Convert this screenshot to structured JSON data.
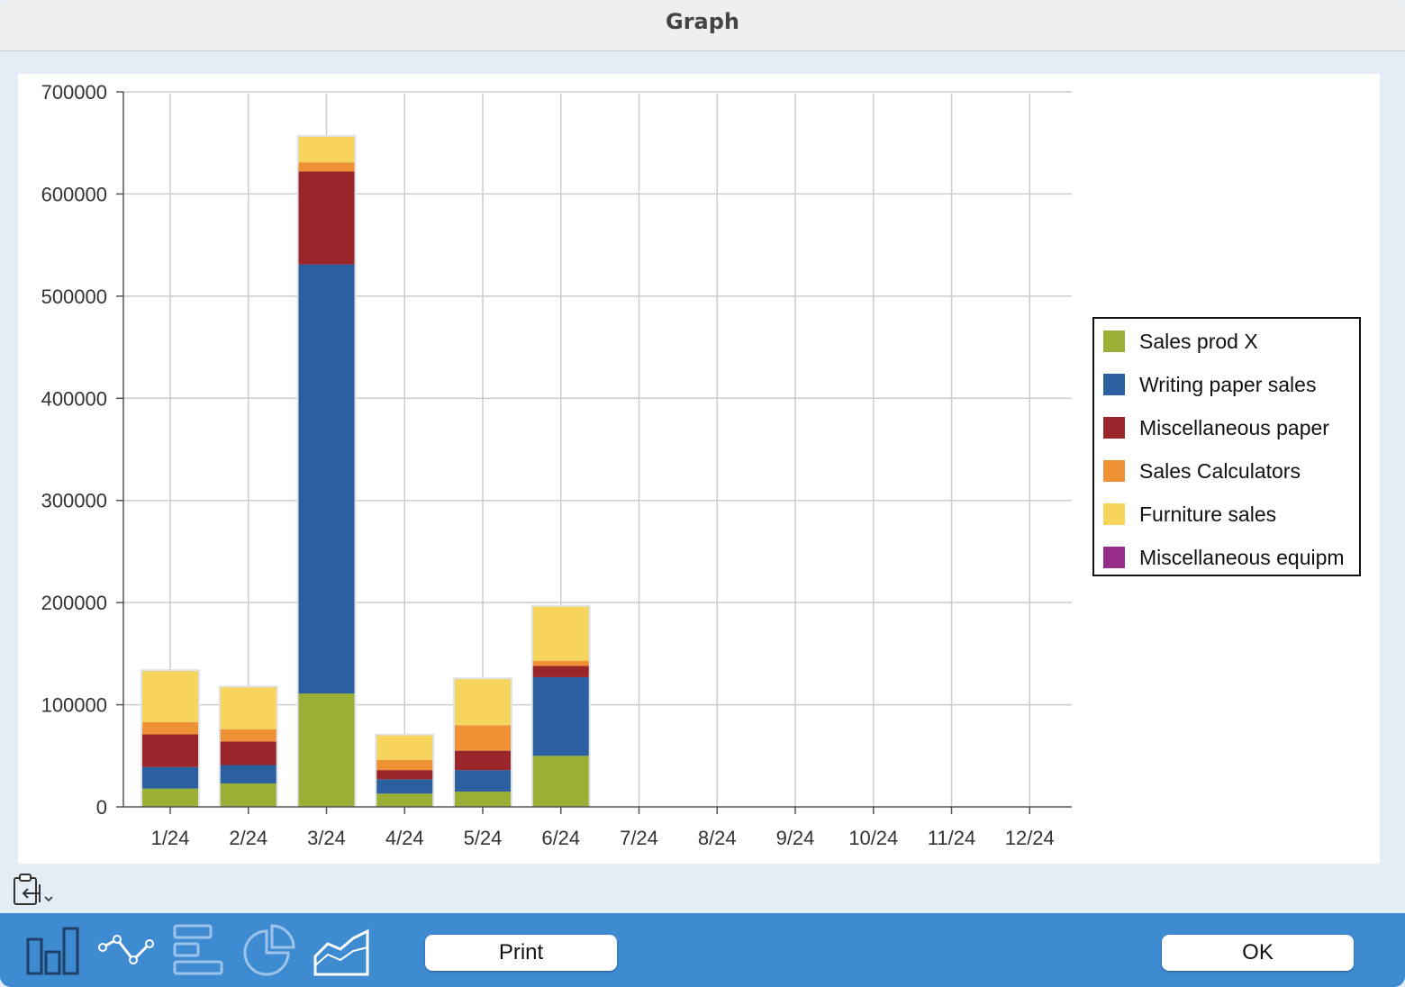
{
  "window": {
    "title": "Graph"
  },
  "chart_data": {
    "type": "bar",
    "stacked": true,
    "categories": [
      "1/24",
      "2/24",
      "3/24",
      "4/24",
      "5/24",
      "6/24",
      "7/24",
      "8/24",
      "9/24",
      "10/24",
      "11/24",
      "12/24"
    ],
    "ylim": [
      0,
      700000
    ],
    "yticks": [
      0,
      100000,
      200000,
      300000,
      400000,
      500000,
      600000,
      700000
    ],
    "ytick_labels": [
      "0",
      "100000",
      "200000",
      "300000",
      "400000",
      "500000",
      "600000",
      "700000"
    ],
    "grid": true,
    "legend_position": "right",
    "series": [
      {
        "name": "Sales prod X",
        "color": "#9aaf36",
        "values": [
          18000,
          23000,
          111000,
          13000,
          15000,
          50000,
          0,
          0,
          0,
          0,
          0,
          0
        ]
      },
      {
        "name": "Writing paper sales",
        "color": "#2b5fa0",
        "values": [
          21000,
          18000,
          420000,
          14000,
          21000,
          77000,
          0,
          0,
          0,
          0,
          0,
          0
        ]
      },
      {
        "name": "Miscellaneous paper",
        "color": "#9b2629",
        "values": [
          32000,
          23000,
          91000,
          9000,
          19000,
          11000,
          0,
          0,
          0,
          0,
          0,
          0
        ]
      },
      {
        "name": "Sales Calculators",
        "color": "#ef9236",
        "values": [
          12000,
          12000,
          9000,
          10000,
          25000,
          5000,
          0,
          0,
          0,
          0,
          0,
          0
        ]
      },
      {
        "name": "Furniture sales",
        "color": "#f7d45c",
        "values": [
          50000,
          41000,
          25000,
          24000,
          45000,
          53000,
          0,
          0,
          0,
          0,
          0,
          0
        ]
      },
      {
        "name": "Miscellaneous equipm",
        "color": "#982c8b",
        "values": [
          0,
          0,
          0,
          0,
          0,
          0,
          0,
          0,
          0,
          0,
          0,
          0
        ]
      }
    ]
  },
  "toolbar": {
    "print_label": "Print",
    "ok_label": "OK",
    "chart_type_icons": [
      "bar-chart-icon",
      "line-chart-icon",
      "horizontal-bar-chart-icon",
      "pie-chart-icon",
      "area-chart-icon"
    ]
  }
}
